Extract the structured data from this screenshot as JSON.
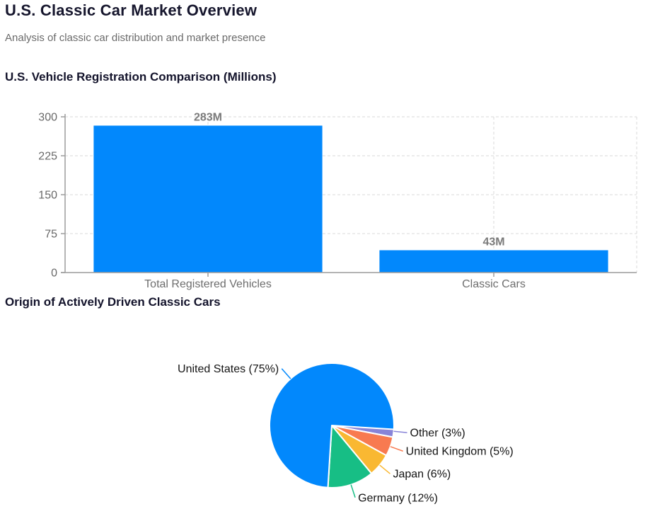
{
  "page": {
    "title": "U.S. Classic Car Market Overview",
    "subtitle": "Analysis of classic car distribution and market presence"
  },
  "colors": {
    "accent_blue": "#0288FC",
    "heading_text": "#16162d",
    "muted_text": "#6a6a6a",
    "axis_text": "#686868",
    "value_label_text": "#7a7a7a",
    "gridline": "#d8d8d8",
    "axis_line": "#9c9c9c"
  },
  "chart_data": [
    {
      "type": "bar",
      "title": "U.S. Vehicle Registration Comparison (Millions)",
      "categories": [
        "Total Registered Vehicles",
        "Classic Cars"
      ],
      "values": [
        283,
        43
      ],
      "value_labels": [
        "283M",
        "43M"
      ],
      "ylabel": "",
      "xlabel": "",
      "ylim": [
        0,
        300
      ],
      "yticks": [
        0,
        75,
        150,
        225,
        300
      ],
      "grid": "dashed",
      "legend": "none",
      "bar_color": "#0288FC"
    },
    {
      "type": "pie",
      "title": "Origin of Actively Driven Classic Cars",
      "start_angle": "east",
      "direction": "clockwise",
      "legend": "none",
      "slices": [
        {
          "name": "Other",
          "label": "Other (3%)",
          "value": 3,
          "color": "#8884D8"
        },
        {
          "name": "United Kingdom",
          "label": "United Kingdom (5%)",
          "value": 5,
          "color": "#F87A50"
        },
        {
          "name": "Japan",
          "label": "Japan (6%)",
          "value": 6,
          "color": "#F9B832"
        },
        {
          "name": "Germany",
          "label": "Germany (12%)",
          "value": 12,
          "color": "#17BE85"
        },
        {
          "name": "United States",
          "label": "United States (75%)",
          "value": 75,
          "color": "#0288FC"
        }
      ]
    }
  ]
}
